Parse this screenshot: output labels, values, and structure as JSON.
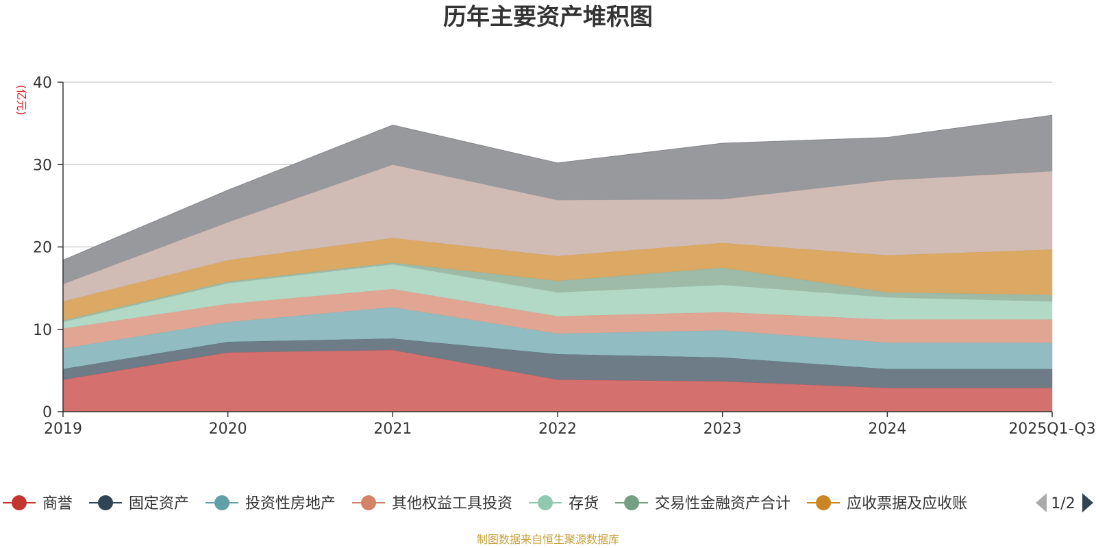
{
  "chart_data": {
    "type": "area",
    "stacked": true,
    "title": "历年主要资产堆积图",
    "ylabel": "(亿元)",
    "xlabel": "",
    "ylim": [
      0,
      40
    ],
    "yticks": [
      0,
      10,
      20,
      30,
      40
    ],
    "grid": true,
    "categories": [
      "2019",
      "2020",
      "2021",
      "2022",
      "2023",
      "2024",
      "2025Q1-Q3"
    ],
    "series": [
      {
        "name": "商誉",
        "color": "#c23531",
        "fill": "#d4706e",
        "in_legend": true,
        "values": [
          3.9,
          7.2,
          7.5,
          3.9,
          3.7,
          2.9,
          2.9
        ]
      },
      {
        "name": "固定资产",
        "color": "#2f4554",
        "fill": "#6e7c87",
        "in_legend": true,
        "values": [
          1.3,
          1.3,
          1.4,
          3.1,
          2.9,
          2.3,
          2.3
        ]
      },
      {
        "name": "投资性房地产",
        "color": "#61a0a8",
        "fill": "#90bcc2",
        "in_legend": true,
        "values": [
          2.5,
          2.4,
          3.8,
          2.5,
          3.3,
          3.2,
          3.2
        ]
      },
      {
        "name": "其他权益工具投资",
        "color": "#d48265",
        "fill": "#e1a693",
        "in_legend": true,
        "values": [
          2.4,
          2.2,
          2.2,
          2.1,
          2.2,
          2.8,
          2.8
        ]
      },
      {
        "name": "存货",
        "color": "#91c7ae",
        "fill": "#b2d8c6",
        "in_legend": true,
        "values": [
          0.8,
          2.5,
          3.0,
          2.9,
          3.3,
          2.7,
          2.2
        ]
      },
      {
        "name": "交易性金融资产合计",
        "color": "#749f83",
        "fill": "#9ebba8",
        "in_legend": true,
        "values": [
          0.2,
          0.2,
          0.2,
          1.4,
          2.1,
          0.6,
          0.8
        ]
      },
      {
        "name": "应收票据及应收账",
        "color": "#ca8622",
        "fill": "#dba963",
        "in_legend": true,
        "values": [
          2.3,
          2.6,
          3.0,
          3.0,
          3.0,
          4.5,
          5.5
        ]
      },
      {
        "name": "",
        "color": "#c4aba2",
        "fill": "#d0bbb5",
        "in_legend": false,
        "values": [
          2.1,
          4.6,
          8.9,
          6.8,
          5.3,
          9.1,
          9.5
        ]
      },
      {
        "name": "",
        "color": "#6e7074",
        "fill": "#98999d",
        "in_legend": false,
        "values": [
          2.9,
          3.9,
          4.8,
          4.5,
          6.8,
          5.2,
          6.8
        ]
      }
    ],
    "legend": {
      "position": "bottom",
      "page_indicator": "1/2"
    },
    "source_note": "制图数据来自恒生聚源数据库"
  }
}
